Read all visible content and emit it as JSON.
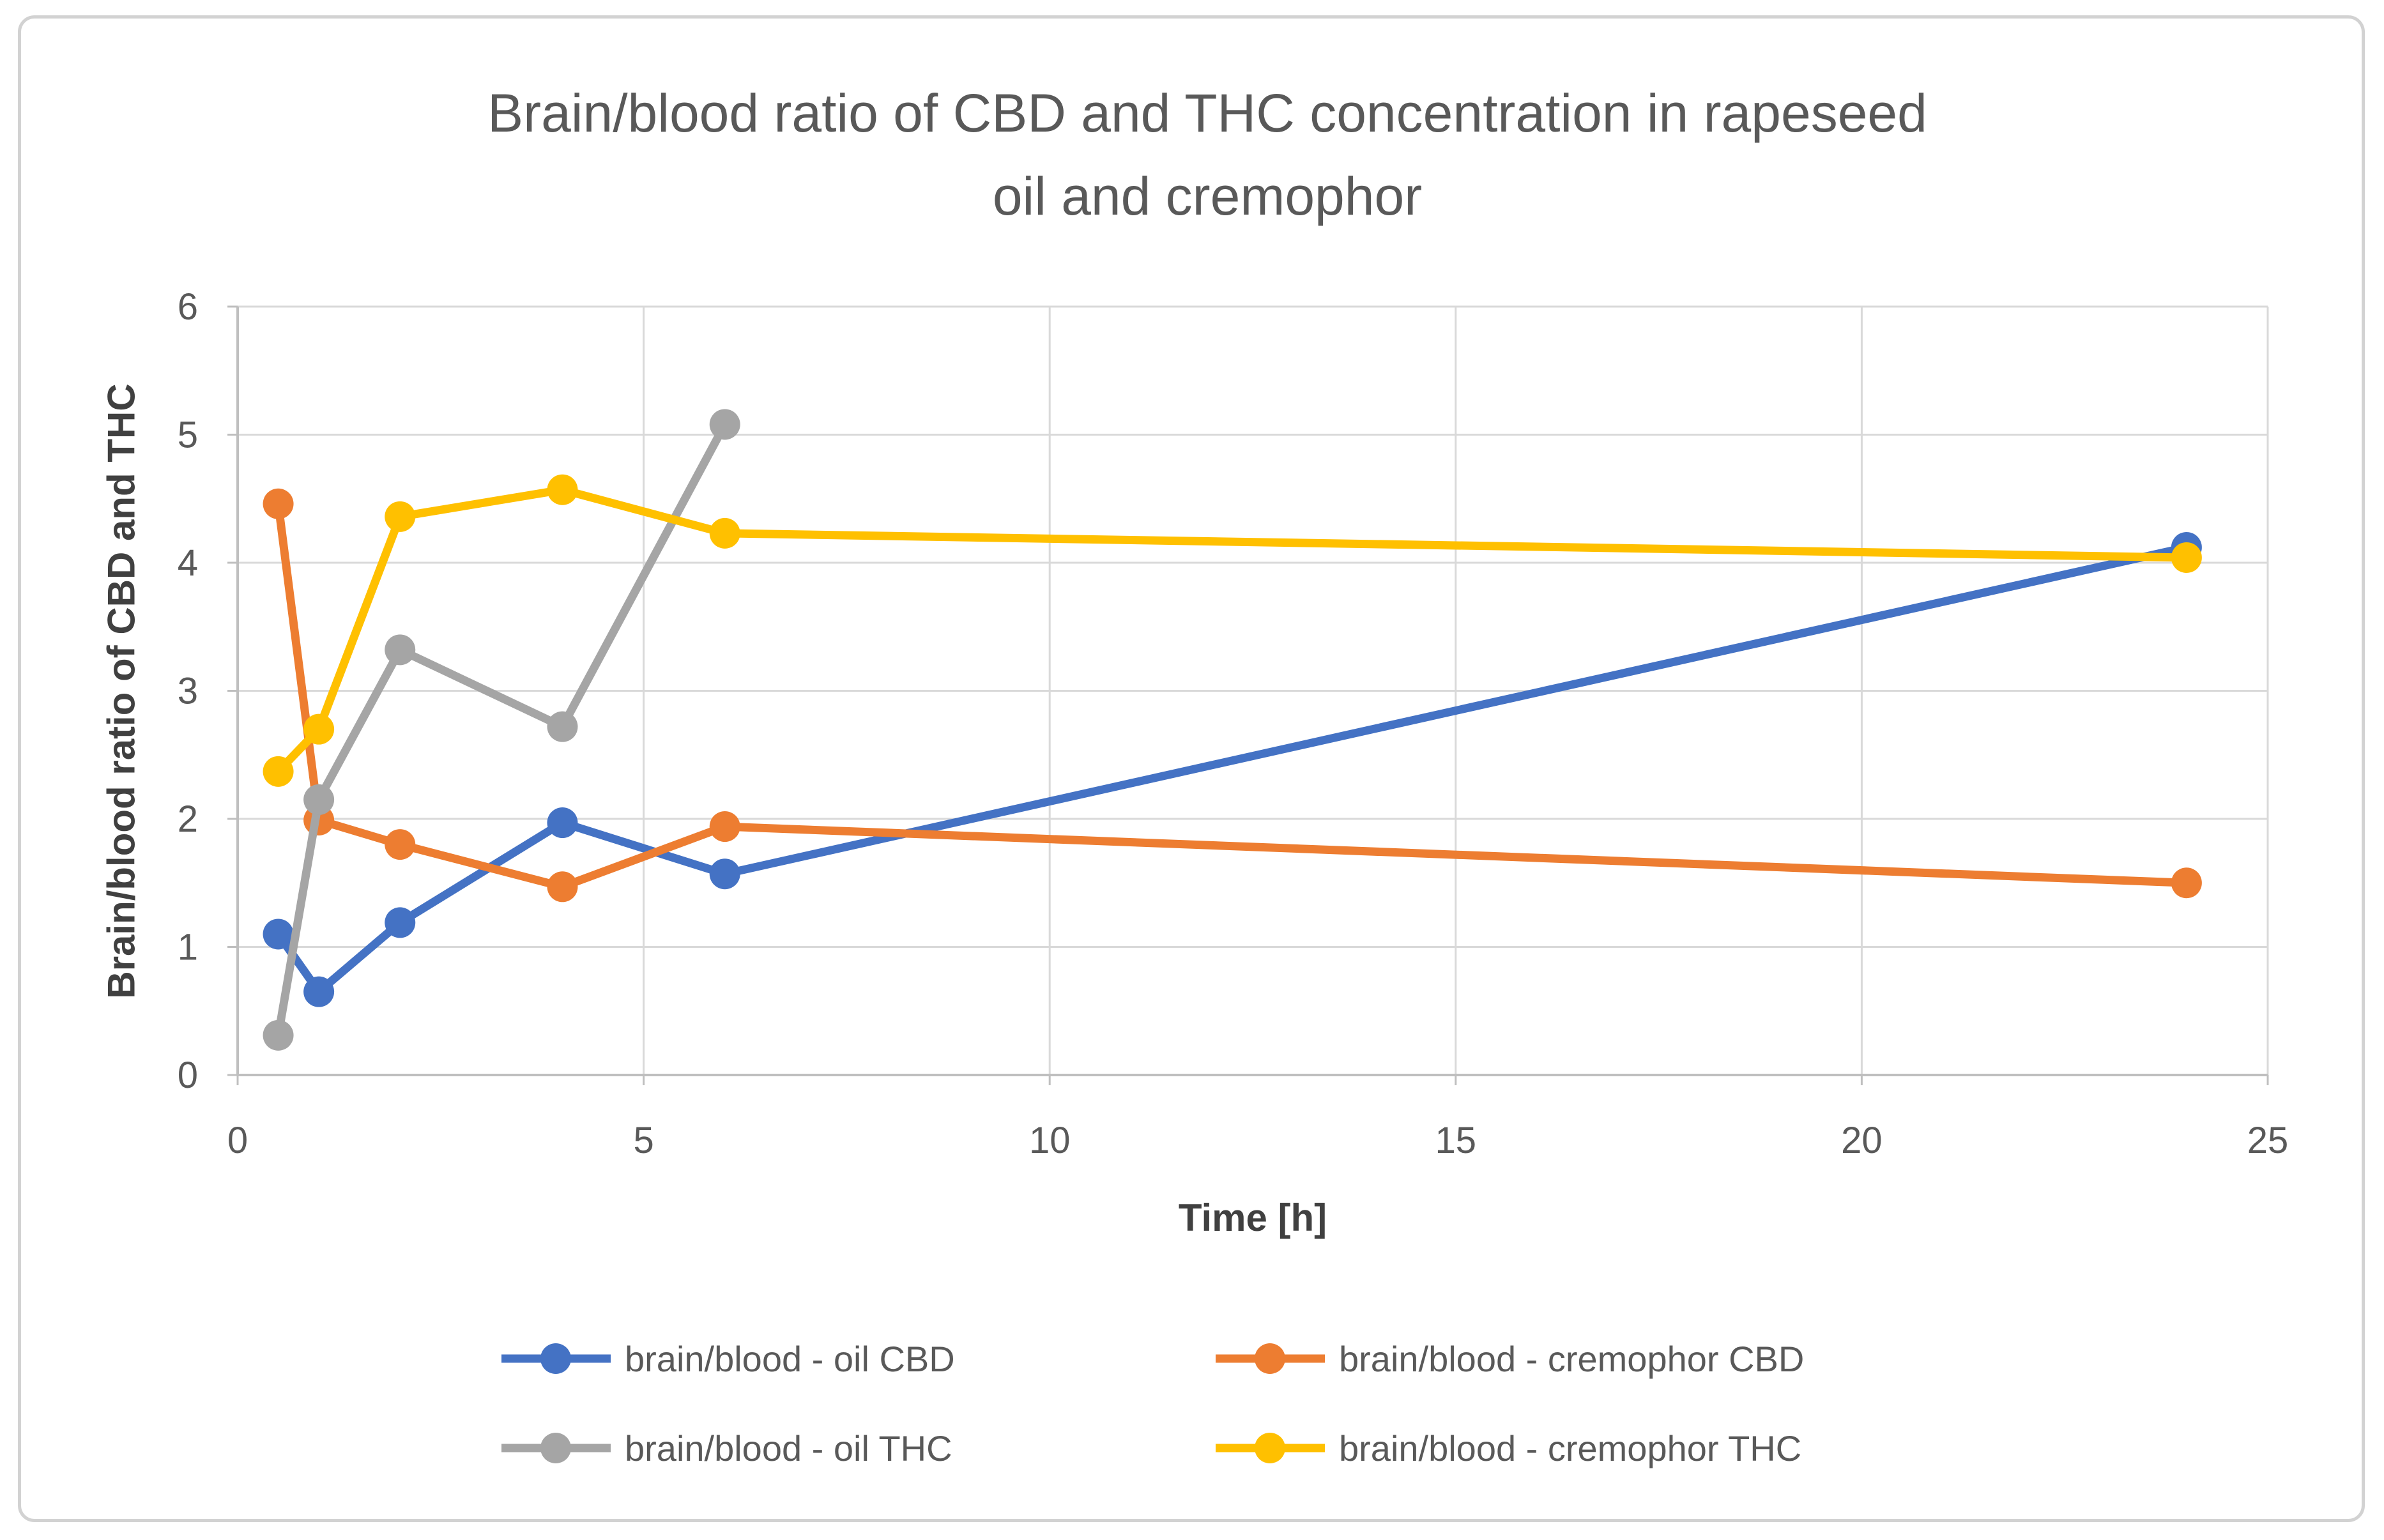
{
  "chart_data": {
    "type": "line",
    "title": "Brain/blood ratio of CBD and THC concentration in rapeseed oil and cremophor",
    "title_lines": [
      "Brain/blood ratio of CBD and THC concentration in rapeseed",
      "oil and cremophor"
    ],
    "xlabel": "Time [h]",
    "ylabel": "Brain/blood ratio of CBD and THC",
    "xlim": [
      0,
      25
    ],
    "ylim": [
      0,
      6
    ],
    "x_ticks": [
      0,
      5,
      10,
      15,
      20,
      25
    ],
    "y_ticks": [
      0,
      1,
      2,
      3,
      4,
      5,
      6
    ],
    "grid": true,
    "legend_position": "bottom",
    "marker": "circle",
    "series": [
      {
        "name": "brain/blood - oil CBD",
        "color": "#4472C4",
        "x": [
          0.5,
          1,
          2,
          4,
          6,
          24
        ],
        "values": [
          1.1,
          0.65,
          1.19,
          1.97,
          1.57,
          4.12
        ]
      },
      {
        "name": "brain/blood - cremophor CBD",
        "color": "#ED7D31",
        "x": [
          0.5,
          1,
          2,
          4,
          6,
          24
        ],
        "values": [
          4.46,
          1.99,
          1.8,
          1.47,
          1.94,
          1.5
        ]
      },
      {
        "name": "brain/blood - oil THC",
        "color": "#A5A5A5",
        "x": [
          0.5,
          1,
          2,
          4,
          6
        ],
        "values": [
          0.31,
          2.15,
          3.32,
          2.72,
          5.08
        ]
      },
      {
        "name": "brain/blood - cremophor THC",
        "color": "#FFC000",
        "x": [
          0.5,
          1,
          2,
          4,
          6,
          24
        ],
        "values": [
          2.37,
          2.7,
          4.36,
          4.57,
          4.23,
          4.04
        ]
      }
    ],
    "text_color": "#595959",
    "grid_color": "#D9D9D9",
    "axis_color": "#BFBFBF",
    "background_color": "#FFFFFF"
  }
}
